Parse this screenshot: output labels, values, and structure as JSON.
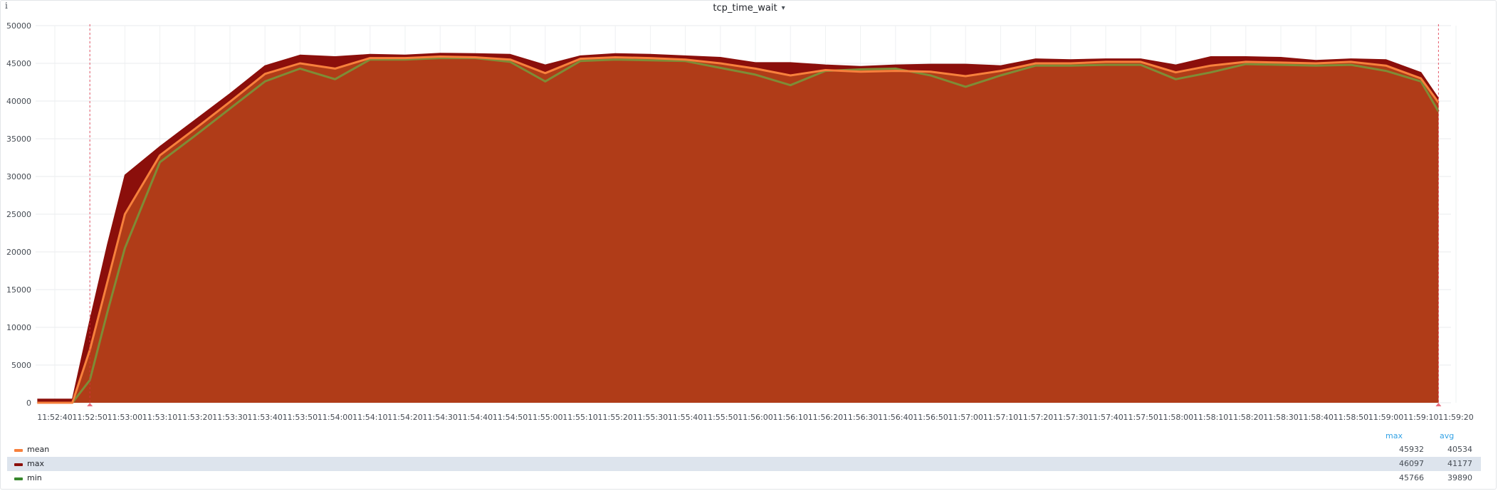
{
  "panel": {
    "info_icon": "i",
    "title": "tcp_time_wait",
    "caret_icon": "▾"
  },
  "chart_data": {
    "type": "area",
    "title": "tcp_time_wait",
    "x": [
      "11:52:35",
      "11:52:40",
      "11:52:45",
      "11:52:50",
      "11:52:55",
      "11:53:00",
      "11:53:10",
      "11:53:20",
      "11:53:30",
      "11:53:40",
      "11:53:50",
      "11:54:00",
      "11:54:10",
      "11:54:20",
      "11:54:30",
      "11:54:40",
      "11:54:50",
      "11:55:00",
      "11:55:10",
      "11:55:20",
      "11:55:30",
      "11:55:40",
      "11:55:50",
      "11:56:00",
      "11:56:10",
      "11:56:20",
      "11:56:30",
      "11:56:40",
      "11:56:50",
      "11:57:00",
      "11:57:10",
      "11:57:20",
      "11:57:30",
      "11:57:40",
      "11:57:50",
      "11:58:00",
      "11:58:10",
      "11:58:20",
      "11:58:30",
      "11:58:40",
      "11:58:50",
      "11:59:00",
      "11:59:10",
      "11:59:15"
    ],
    "x_tick_labels": [
      "11:52:40",
      "11:52:50",
      "11:53:00",
      "11:53:10",
      "11:53:20",
      "11:53:30",
      "11:53:40",
      "11:53:50",
      "11:54:00",
      "11:54:10",
      "11:54:20",
      "11:54:30",
      "11:54:40",
      "11:54:50",
      "11:55:00",
      "11:55:10",
      "11:55:20",
      "11:55:30",
      "11:55:40",
      "11:55:50",
      "11:56:00",
      "11:56:10",
      "11:56:20",
      "11:56:30",
      "11:56:40",
      "11:56:50",
      "11:57:00",
      "11:57:10",
      "11:57:20",
      "11:57:30",
      "11:57:40",
      "11:57:50",
      "11:58:00",
      "11:58:10",
      "11:58:20",
      "11:58:30",
      "11:58:40",
      "11:58:50",
      "11:59:00",
      "11:59:10",
      "11:59:20"
    ],
    "y_tick_labels": [
      "0",
      "5000",
      "10000",
      "15000",
      "20000",
      "25000",
      "30000",
      "35000",
      "40000",
      "45000",
      "50000"
    ],
    "ylim": [
      0,
      50000
    ],
    "grid": true,
    "series": [
      {
        "name": "max",
        "color": "#8b0f0b",
        "fill": "#8b0f0b",
        "values": [
          500,
          500,
          500,
          11000,
          21000,
          30200,
          34000,
          37500,
          41000,
          44700,
          46100,
          45900,
          46200,
          46100,
          46350,
          46300,
          46200,
          44800,
          46000,
          46300,
          46200,
          46000,
          45800,
          45100,
          45100,
          44800,
          44600,
          44800,
          44900,
          44900,
          44700,
          45600,
          45500,
          45600,
          45600,
          44800,
          45900,
          45900,
          45800,
          45400,
          45600,
          45500,
          43800,
          40400
        ]
      },
      {
        "name": "mean",
        "color": "#f7803c",
        "fill": "#b03c18",
        "values": [
          0,
          0,
          0,
          7000,
          16000,
          25000,
          32800,
          36300,
          39900,
          43600,
          45000,
          44300,
          45700,
          45700,
          45900,
          45800,
          45500,
          43700,
          45600,
          45800,
          45700,
          45500,
          45000,
          44300,
          43400,
          44100,
          43900,
          44000,
          43900,
          43300,
          44000,
          45000,
          45000,
          45200,
          45200,
          43800,
          44700,
          45200,
          45100,
          45000,
          45200,
          44700,
          43000,
          39800
        ]
      },
      {
        "name": "min",
        "color": "#7e8c36",
        "fill": "#b03c18",
        "values": [
          0,
          0,
          0,
          3000,
          12000,
          20500,
          31900,
          35400,
          39000,
          42600,
          44300,
          42900,
          45500,
          45500,
          45700,
          45700,
          45200,
          42600,
          45300,
          45500,
          45400,
          45300,
          44400,
          43500,
          42100,
          44000,
          44200,
          44300,
          43400,
          41900,
          43400,
          44700,
          44700,
          44800,
          44800,
          42900,
          43800,
          44900,
          44800,
          44700,
          44800,
          44000,
          42600,
          38600
        ]
      }
    ],
    "threshold_markers": [
      "11:52:50",
      "11:59:15"
    ],
    "legend_placement": "bottom",
    "legend": {
      "columns": [
        "max",
        "avg"
      ],
      "rows": [
        {
          "name": "mean",
          "max": "45932",
          "avg": "40534",
          "color": "#f7803c"
        },
        {
          "name": "max",
          "max": "46097",
          "avg": "41177",
          "color": "#8b0f0b"
        },
        {
          "name": "min",
          "max": "45766",
          "avg": "39890",
          "color": "#37872d"
        }
      ]
    }
  }
}
